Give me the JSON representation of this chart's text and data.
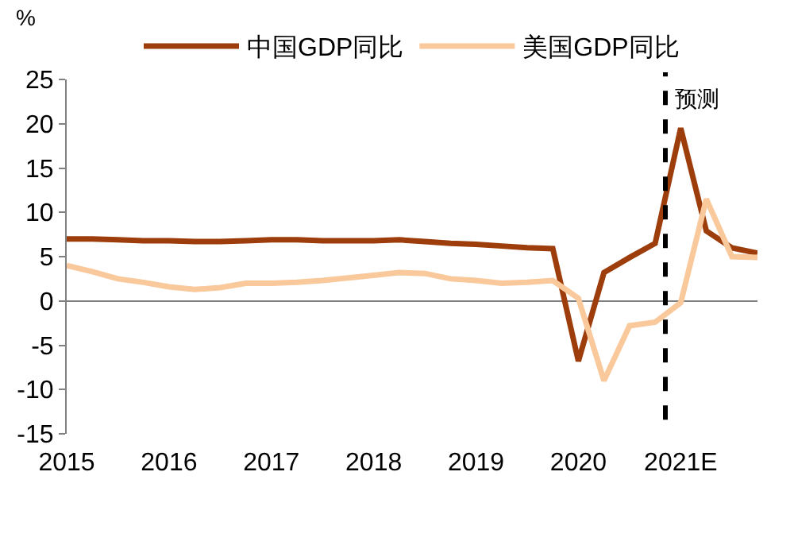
{
  "chart_data": {
    "type": "line",
    "ylabel": "%",
    "x": [
      2015,
      2015.25,
      2015.5,
      2015.75,
      2016,
      2016.25,
      2016.5,
      2016.75,
      2017,
      2017.25,
      2017.5,
      2017.75,
      2018,
      2018.25,
      2018.5,
      2018.75,
      2019,
      2019.25,
      2019.5,
      2019.75,
      2020,
      2020.25,
      2020.5,
      2020.75,
      2021,
      2021.25,
      2021.5,
      2021.75
    ],
    "series": [
      {
        "name": "中国GDP同比",
        "color": "#9c3d0b",
        "values": [
          7.0,
          7.0,
          6.9,
          6.8,
          6.8,
          6.7,
          6.7,
          6.8,
          6.9,
          6.9,
          6.8,
          6.8,
          6.8,
          6.9,
          6.7,
          6.5,
          6.4,
          6.2,
          6.0,
          5.9,
          -6.8,
          3.2,
          4.9,
          6.5,
          19.5,
          7.9,
          6.0,
          5.4
        ]
      },
      {
        "name": "美国GDP同比",
        "color": "#f9c89b",
        "values": [
          4.0,
          3.3,
          2.5,
          2.1,
          1.6,
          1.3,
          1.5,
          2.0,
          2.0,
          2.1,
          2.3,
          2.6,
          2.9,
          3.2,
          3.1,
          2.5,
          2.3,
          2.0,
          2.1,
          2.3,
          0.3,
          -9.0,
          -2.8,
          -2.4,
          -0.2,
          11.5,
          5.0,
          4.9
        ]
      }
    ],
    "xlim": [
      2015,
      2021.75
    ],
    "xticks": [
      2015,
      2016,
      2017,
      2018,
      2019,
      2020,
      {
        "value": 2021,
        "label": "2021E"
      }
    ],
    "ylim": [
      -15,
      25
    ],
    "yticks": [
      -15,
      -10,
      -5,
      0,
      5,
      10,
      15,
      20,
      25
    ],
    "ref_lines": [
      {
        "axis": "x",
        "value": 2020.85,
        "label": "预测",
        "color": "#000000",
        "line_style": "dashed"
      }
    ],
    "legend": "top",
    "marker": "none",
    "line_style": "solid"
  }
}
